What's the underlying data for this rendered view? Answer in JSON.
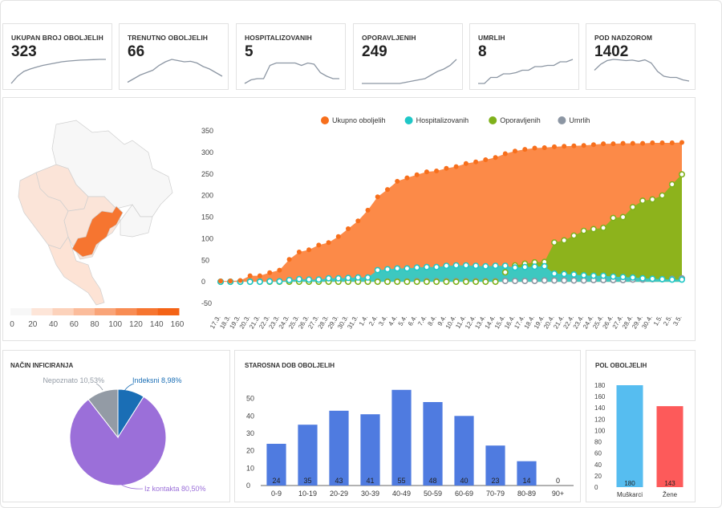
{
  "kpis": [
    {
      "title": "UKUPAN BROJ OBOLJELIH",
      "value": "323",
      "spark": [
        0,
        0.3,
        0.5,
        0.6,
        0.68,
        0.75,
        0.8,
        0.85,
        0.9,
        0.93,
        0.95,
        0.97,
        0.98,
        0.99,
        1,
        1
      ]
    },
    {
      "title": "TRENUTNO OBOLJELIH",
      "value": "66",
      "spark": [
        0.05,
        0.2,
        0.35,
        0.45,
        0.55,
        0.75,
        0.9,
        1,
        0.95,
        0.9,
        0.92,
        0.85,
        0.7,
        0.6,
        0.45,
        0.3
      ]
    },
    {
      "title": "HOSPITALIZOVANIH",
      "value": "5",
      "spark": [
        0,
        0.15,
        0.2,
        0.2,
        0.75,
        0.85,
        0.85,
        0.85,
        0.85,
        0.75,
        0.85,
        0.8,
        0.45,
        0.3,
        0.2,
        0.2
      ]
    },
    {
      "title": "OPORAVLJENIH",
      "value": "249",
      "spark": [
        0,
        0,
        0,
        0,
        0,
        0,
        0,
        0.05,
        0.1,
        0.15,
        0.2,
        0.35,
        0.5,
        0.6,
        0.75,
        1
      ]
    },
    {
      "title": "UMRLIH",
      "value": "8",
      "spark": [
        0,
        0,
        0.25,
        0.25,
        0.4,
        0.4,
        0.45,
        0.55,
        0.55,
        0.7,
        0.7,
        0.75,
        0.75,
        0.9,
        0.9,
        1
      ]
    },
    {
      "title": "POD NADZOROM",
      "value": "1402",
      "spark": [
        0.55,
        0.8,
        0.95,
        1,
        0.98,
        0.95,
        0.97,
        0.92,
        0.98,
        0.85,
        0.5,
        0.3,
        0.25,
        0.25,
        0.15,
        0.1
      ]
    }
  ],
  "map": {
    "legend_ticks": [
      "0",
      "20",
      "40",
      "60",
      "80",
      "100",
      "120",
      "140",
      "160"
    ],
    "colors": [
      "#f7f7f7",
      "#fde5d8",
      "#fcd2bb",
      "#fbbc9b",
      "#f9a478",
      "#f88c53",
      "#f67530",
      "#f46316"
    ]
  },
  "chart_data": [
    {
      "type": "area",
      "legend": [
        {
          "name": "Ukupno oboljelih",
          "color": "#f76f1c"
        },
        {
          "name": "Hospitalizovanih",
          "color": "#1fc7c7"
        },
        {
          "name": "Oporavljenih",
          "color": "#7fb11b"
        },
        {
          "name": "Umrlih",
          "color": "#8c96a3"
        }
      ],
      "categories": [
        "17.3.",
        "18.3.",
        "19.3.",
        "20.3.",
        "21.3.",
        "22.3.",
        "23.3.",
        "24.3.",
        "25.3.",
        "26.3.",
        "27.3.",
        "28.3.",
        "29.3.",
        "30.3.",
        "31.3.",
        "1.4.",
        "2.4.",
        "3.4.",
        "4.4.",
        "5.4.",
        "6.4.",
        "7.4.",
        "8.4.",
        "9.4.",
        "10.4.",
        "11.4.",
        "12.4.",
        "13.4.",
        "14.4.",
        "15.4.",
        "16.4.",
        "17.4.",
        "18.4.",
        "19.4.",
        "20.4.",
        "21.4.",
        "22.4.",
        "23.4.",
        "24.4.",
        "25.4.",
        "26.4.",
        "27.4.",
        "28.4.",
        "29.4.",
        "30.4.",
        "1.5.",
        "2.5.",
        "3.5."
      ],
      "xlabels": [
        "17.3.",
        "18.3.",
        "19.3.",
        "20.3.",
        "21.3.",
        "22.3.",
        "23.3.",
        "24.3.",
        "25.3.",
        "26.3.",
        "27.3.",
        "28.3.",
        "29.3.",
        "30.3.",
        "31.3.",
        "1.4.",
        "2.4.",
        "3.4.",
        "4.4.",
        "5.4.",
        "6.4.",
        "7.4.",
        "8.4.",
        "9.4.",
        "10.4.",
        "11.4.",
        "12.4.",
        "13.4.",
        "14.4.",
        "15.4.",
        "16.4.",
        "17.4.",
        "18.4.",
        "19.4.",
        "20.4.",
        "21.4.",
        "22.4.",
        "23.4.",
        "24.4.",
        "25.4.",
        "26.4.",
        "27.4.",
        "28.4.",
        "29.4.",
        "30.4.",
        "1.5.",
        "2.5.",
        "3.5."
      ],
      "series": [
        {
          "name": "Ukupno oboljelih",
          "values": [
            2,
            2,
            3,
            14,
            14,
            21,
            27,
            52,
            69,
            74,
            85,
            91,
            105,
            123,
            141,
            166,
            197,
            214,
            233,
            241,
            248,
            255,
            257,
            263,
            267,
            274,
            278,
            283,
            288,
            297,
            303,
            307,
            310,
            311,
            313,
            314,
            315,
            316,
            318,
            320,
            320,
            321,
            321,
            321,
            322,
            322,
            322,
            323
          ]
        },
        {
          "name": "Hospitalizovanih",
          "values": [
            0,
            0,
            0,
            0,
            0,
            1,
            1,
            4,
            6,
            5,
            5,
            8,
            8,
            9,
            10,
            10,
            27,
            29,
            31,
            31,
            33,
            34,
            34,
            37,
            38,
            38,
            37,
            36,
            37,
            37,
            33,
            34,
            35,
            36,
            19,
            18,
            17,
            15,
            14,
            14,
            12,
            11,
            10,
            8,
            7,
            6,
            5,
            5
          ]
        },
        {
          "name": "Oporavljenih",
          "values": [
            0,
            0,
            0,
            0,
            0,
            0,
            0,
            0,
            0,
            0,
            0,
            0,
            0,
            0,
            0,
            0,
            0,
            0,
            0,
            0,
            0,
            0,
            0,
            0,
            0,
            0,
            0,
            0,
            0,
            22,
            38,
            42,
            45,
            46,
            91,
            96,
            107,
            118,
            122,
            125,
            148,
            150,
            173,
            188,
            191,
            200,
            226,
            249
          ]
        },
        {
          "name": "Umrlih",
          "values": [
            0,
            0,
            0,
            1,
            1,
            1,
            1,
            1,
            1,
            1,
            1,
            1,
            1,
            1,
            1,
            1,
            1,
            1,
            1,
            1,
            2,
            2,
            2,
            2,
            2,
            2,
            2,
            2,
            2,
            2,
            2,
            2,
            2,
            3,
            3,
            3,
            3,
            3,
            4,
            4,
            4,
            4,
            5,
            5,
            6,
            6,
            7,
            8
          ]
        }
      ],
      "yticks": [
        "350",
        "300",
        "250",
        "200",
        "150",
        "100",
        "50",
        "0",
        "-50"
      ],
      "ylim": [
        -50,
        350
      ]
    },
    {
      "type": "pie",
      "title": "NAČIN INFICIRANJA",
      "slices": [
        {
          "label": "Indeksni 8,98%",
          "value": 8.98,
          "color": "#1a6eb5"
        },
        {
          "label": "Iz kontakta 80,50%",
          "value": 80.5,
          "color": "#9b6fd9"
        },
        {
          "label": "Nepoznato 10,53%",
          "value": 10.53,
          "color": "#939ba5"
        }
      ]
    },
    {
      "type": "bar",
      "title": "STAROSNA DOB OBOLJELIH",
      "categories": [
        "0-9",
        "10-19",
        "20-29",
        "30-39",
        "40-49",
        "50-59",
        "60-69",
        "70-79",
        "80-89",
        "90+"
      ],
      "values": [
        24,
        35,
        43,
        41,
        55,
        48,
        40,
        23,
        14,
        0
      ],
      "labels": [
        "24",
        "35",
        "43",
        "41",
        "55",
        "48",
        "40",
        "23",
        "14",
        "0"
      ],
      "yticks": [
        "50",
        "40",
        "30",
        "20",
        "10",
        "0"
      ],
      "ylim": [
        0,
        60
      ],
      "color": "#4f7be0"
    },
    {
      "type": "bar",
      "title": "POL OBOLJELIH",
      "categories": [
        "Muškarci",
        "Žene"
      ],
      "values": [
        180,
        143
      ],
      "labels": [
        "180",
        "143"
      ],
      "colors": [
        "#56bdf0",
        "#fd5a5a"
      ],
      "yticks": [
        "180",
        "160",
        "140",
        "120",
        "100",
        "80",
        "60",
        "40",
        "20",
        "0"
      ],
      "ylim": [
        0,
        180
      ]
    }
  ]
}
